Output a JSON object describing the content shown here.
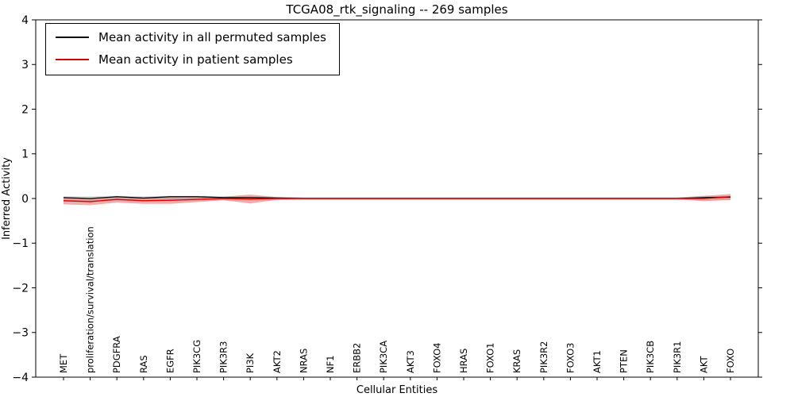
{
  "chart_data": {
    "type": "line",
    "title": "TCGA08_rtk_signaling -- 269 samples",
    "xlabel": "Cellular Entities",
    "ylabel": "Inferred Activity",
    "ylim": [
      -4,
      4
    ],
    "ytick_values": [
      -4,
      -3,
      -2,
      -1,
      0,
      1,
      2,
      3,
      4
    ],
    "ytick_labels": [
      "−4",
      "−3",
      "−2",
      "−1",
      "0",
      "1",
      "2",
      "3",
      "4"
    ],
    "grid": false,
    "legend_position": "upper-left",
    "categories": [
      "MET",
      "proliferation/survival/translation",
      "PDGFRA",
      "RAS",
      "EGFR",
      "PIK3CG",
      "PIK3R3",
      "PI3K",
      "AKT2",
      "NRAS",
      "NF1",
      "ERBB2",
      "PIK3CA",
      "AKT3",
      "FOXO4",
      "HRAS",
      "FOXO1",
      "KRAS",
      "PIK3R2",
      "FOXO3",
      "AKT1",
      "PTEN",
      "PIK3CB",
      "PIK3R1",
      "AKT",
      "FOXO"
    ],
    "series": [
      {
        "name": "Mean activity in all permuted samples",
        "color": "#000000",
        "band_color": "#aaaaaa",
        "band_opacity": 0.45,
        "values": [
          0.02,
          0.0,
          0.04,
          0.01,
          0.04,
          0.04,
          0.02,
          0.02,
          0.01,
          0.0,
          0.0,
          0.0,
          0.0,
          0.0,
          0.0,
          0.0,
          0.0,
          0.0,
          0.0,
          0.0,
          0.0,
          0.0,
          0.0,
          0.0,
          0.02,
          0.03
        ],
        "band_upper": [
          0.05,
          0.05,
          0.06,
          0.05,
          0.06,
          0.06,
          0.05,
          0.05,
          0.04,
          0.03,
          0.03,
          0.03,
          0.03,
          0.03,
          0.03,
          0.03,
          0.03,
          0.03,
          0.03,
          0.03,
          0.03,
          0.03,
          0.03,
          0.03,
          0.05,
          0.06
        ],
        "band_lower": [
          -0.06,
          -0.06,
          -0.05,
          -0.06,
          -0.05,
          -0.05,
          -0.04,
          -0.05,
          -0.04,
          -0.03,
          -0.03,
          -0.03,
          -0.03,
          -0.03,
          -0.03,
          -0.03,
          -0.03,
          -0.03,
          -0.03,
          -0.03,
          -0.03,
          -0.03,
          -0.03,
          -0.03,
          -0.04,
          -0.04
        ]
      },
      {
        "name": "Mean activity in patient samples",
        "color": "#d40000",
        "band_color": "#e86a6a",
        "band_opacity": 0.55,
        "values": [
          -0.05,
          -0.07,
          -0.02,
          -0.05,
          -0.04,
          -0.02,
          0.0,
          -0.01,
          0.0,
          0.0,
          0.0,
          0.0,
          0.0,
          0.0,
          0.0,
          0.0,
          0.0,
          0.0,
          0.0,
          0.0,
          0.0,
          0.0,
          0.0,
          0.0,
          0.0,
          0.04
        ],
        "band_upper": [
          0.03,
          0.0,
          0.04,
          0.02,
          0.03,
          0.03,
          0.04,
          0.09,
          0.03,
          0.02,
          0.02,
          0.02,
          0.02,
          0.02,
          0.02,
          0.02,
          0.02,
          0.02,
          0.02,
          0.02,
          0.02,
          0.02,
          0.02,
          0.02,
          0.06,
          0.1
        ],
        "band_lower": [
          -0.13,
          -0.15,
          -0.09,
          -0.12,
          -0.12,
          -0.08,
          -0.04,
          -0.11,
          -0.03,
          -0.02,
          -0.02,
          -0.02,
          -0.02,
          -0.02,
          -0.02,
          -0.02,
          -0.02,
          -0.02,
          -0.02,
          -0.02,
          -0.02,
          -0.02,
          -0.02,
          -0.02,
          -0.06,
          -0.03
        ]
      }
    ]
  }
}
